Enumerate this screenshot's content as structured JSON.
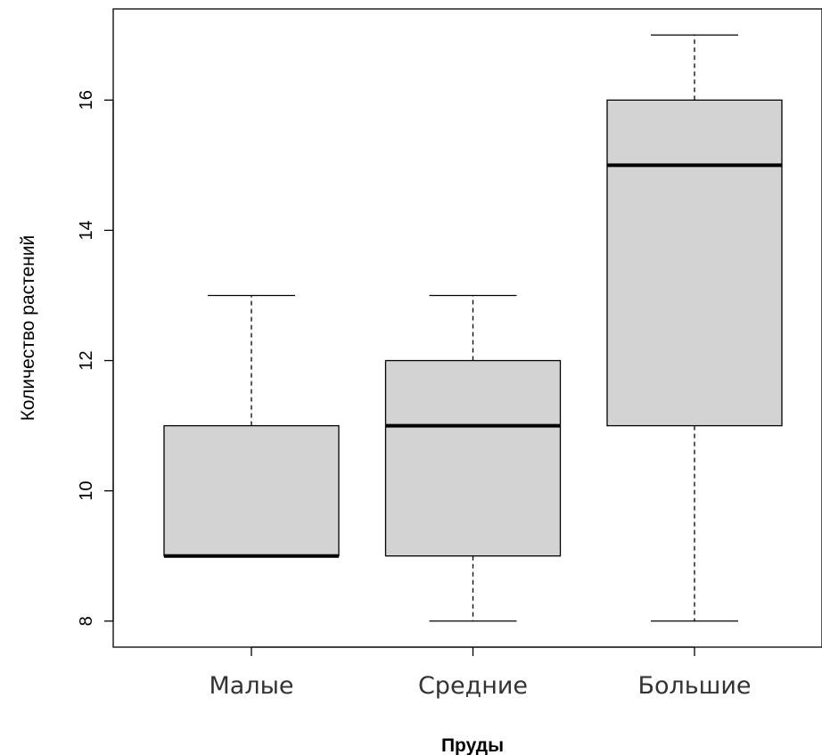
{
  "chart_data": {
    "type": "boxplot",
    "title": "",
    "xlabel": "Пруды",
    "ylabel": "Количество растений",
    "ylim": [
      7.6,
      17.4
    ],
    "yticks": [
      8,
      10,
      12,
      14,
      16
    ],
    "grid": false,
    "box_fill": "#d3d3d3",
    "categories": [
      "Малые",
      "Средние",
      "Большие"
    ],
    "boxes": [
      {
        "category": "Малые",
        "min": 9,
        "q1": 9,
        "median": 9,
        "q3": 11,
        "max": 13
      },
      {
        "category": "Средние",
        "min": 8,
        "q1": 9,
        "median": 11,
        "q3": 12,
        "max": 13
      },
      {
        "category": "Большие",
        "min": 8,
        "q1": 11,
        "median": 15,
        "q3": 16,
        "max": 17
      }
    ]
  }
}
